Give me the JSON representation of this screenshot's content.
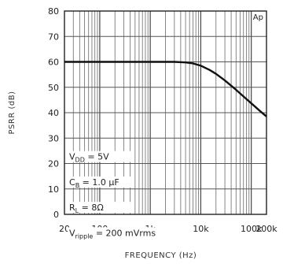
{
  "chart_data": {
    "type": "line",
    "ylabel": "PSRR (dB)",
    "xlabel": "FREQUENCY (Hz)",
    "x_scale": "log",
    "xlim": [
      20,
      200000
    ],
    "ylim": [
      0,
      80
    ],
    "x_ticks": [
      {
        "value": 20,
        "label": "20"
      },
      {
        "value": 100,
        "label": "100"
      },
      {
        "value": 1000,
        "label": "1k"
      },
      {
        "value": 10000,
        "label": "10k"
      },
      {
        "value": 100000,
        "label": "100k"
      },
      {
        "value": 200000,
        "label": "200k"
      }
    ],
    "y_ticks": [
      0,
      10,
      20,
      30,
      40,
      50,
      60,
      70,
      80
    ],
    "grid": true,
    "tag": "Ap",
    "conditions": [
      {
        "base": "V",
        "sub": "DD",
        "rest": " = 5V"
      },
      {
        "base": "C",
        "sub": "B",
        "rest": " = 1.0 µF"
      },
      {
        "base": "R",
        "sub": "L",
        "rest": " = 8Ω"
      },
      {
        "base": "V",
        "sub": "ripple",
        "rest": " = 200 mVrms"
      }
    ],
    "series": [
      {
        "x": [
          20,
          100,
          1000,
          3000,
          5000,
          7000,
          10000,
          15000,
          20000,
          30000,
          50000,
          70000,
          100000,
          150000,
          200000
        ],
        "y": [
          60,
          60,
          60,
          60,
          59.8,
          59.4,
          58.5,
          56.8,
          55.3,
          52.7,
          49,
          46.4,
          43.7,
          40.6,
          38.5
        ]
      }
    ]
  }
}
